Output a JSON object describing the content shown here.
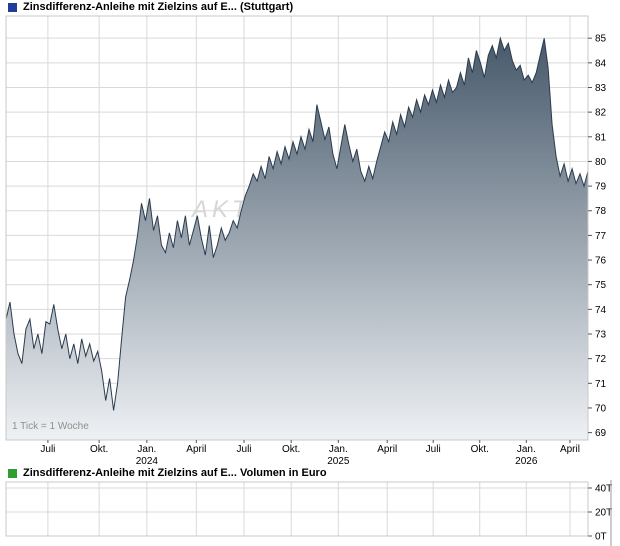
{
  "chart_data": [
    {
      "type": "area",
      "title": "Zinsdifferenz-Anleihe mit Zielzins auf E... (Stuttgart)",
      "footnote": "1 Tick = 1 Woche",
      "watermark": "AKTIEN",
      "ylim": [
        68.7,
        85.9
      ],
      "y_ticks": [
        69,
        70,
        71,
        72,
        73,
        74,
        75,
        76,
        77,
        78,
        79,
        80,
        81,
        82,
        83,
        84,
        85
      ],
      "x_ticks": [
        {
          "label": "Juli",
          "pos": 0.072
        },
        {
          "label": "Okt.",
          "pos": 0.16
        },
        {
          "label": "Jan.",
          "year": "2024",
          "pos": 0.242
        },
        {
          "label": "April",
          "pos": 0.327
        },
        {
          "label": "Juli",
          "pos": 0.409
        },
        {
          "label": "Okt.",
          "pos": 0.49
        },
        {
          "label": "Jan.",
          "year": "2025",
          "pos": 0.571
        },
        {
          "label": "April",
          "pos": 0.655
        },
        {
          "label": "Juli",
          "pos": 0.734
        },
        {
          "label": "Okt.",
          "pos": 0.814
        },
        {
          "label": "Jan.",
          "year": "2026",
          "pos": 0.894
        },
        {
          "label": "April",
          "pos": 0.969
        }
      ],
      "values": [
        73.6,
        74.3,
        73.0,
        72.2,
        71.8,
        73.2,
        73.6,
        72.4,
        73.0,
        72.2,
        73.5,
        73.4,
        74.2,
        73.2,
        72.4,
        73.0,
        72.0,
        72.6,
        71.8,
        72.8,
        72.1,
        72.6,
        71.9,
        72.3,
        71.5,
        70.3,
        71.2,
        69.9,
        71.0,
        72.8,
        74.5,
        75.2,
        76.0,
        77.0,
        78.3,
        77.6,
        78.5,
        77.2,
        77.8,
        76.6,
        76.3,
        77.1,
        76.5,
        77.6,
        76.9,
        77.8,
        76.6,
        77.2,
        77.8,
        76.9,
        76.2,
        77.4,
        76.1,
        76.6,
        77.3,
        76.8,
        77.1,
        77.6,
        77.3,
        78.0,
        78.6,
        79.0,
        79.5,
        79.2,
        79.8,
        79.3,
        80.2,
        79.7,
        80.4,
        79.9,
        80.6,
        80.1,
        80.8,
        80.3,
        81.0,
        80.5,
        81.3,
        80.8,
        82.3,
        81.6,
        80.9,
        81.4,
        80.3,
        79.7,
        80.6,
        81.5,
        80.7,
        80.0,
        80.5,
        79.6,
        79.2,
        79.8,
        79.3,
        80.0,
        80.6,
        81.2,
        80.8,
        81.6,
        81.1,
        81.9,
        81.4,
        82.2,
        81.8,
        82.5,
        82.0,
        82.7,
        82.3,
        82.9,
        82.4,
        83.1,
        82.6,
        83.3,
        82.8,
        83.0,
        83.6,
        83.1,
        84.2,
        83.6,
        84.5,
        84.0,
        83.4,
        84.3,
        84.7,
        84.2,
        85.0,
        84.5,
        84.8,
        84.1,
        83.7,
        83.9,
        83.3,
        83.5,
        83.2,
        83.6,
        84.3,
        85.0,
        83.8,
        81.5,
        80.2,
        79.4,
        79.9,
        79.2,
        79.7,
        79.1,
        79.5,
        79.0,
        79.6
      ],
      "colors": {
        "marker": "#1f3d99",
        "area_top": "#47596b",
        "area_bottom": "#eef1f4",
        "line": "#2b3b4d",
        "grid": "#d9d9d9",
        "axis": "#555555",
        "text": "#000000",
        "watermark": "#d6d6d6"
      }
    },
    {
      "type": "bar",
      "title": "Zinsdifferenz-Anleihe mit Zielzins auf E... Volumen in Euro",
      "ylim": [
        0,
        45000
      ],
      "y_ticks": [
        {
          "label": "0T",
          "value": 0
        },
        {
          "label": "20T",
          "value": 20000
        },
        {
          "label": "40T",
          "value": 40000
        }
      ],
      "values": [],
      "colors": {
        "marker": "#2f9e2f",
        "grid": "#d9d9d9",
        "axis": "#555555",
        "text": "#000000"
      }
    }
  ]
}
